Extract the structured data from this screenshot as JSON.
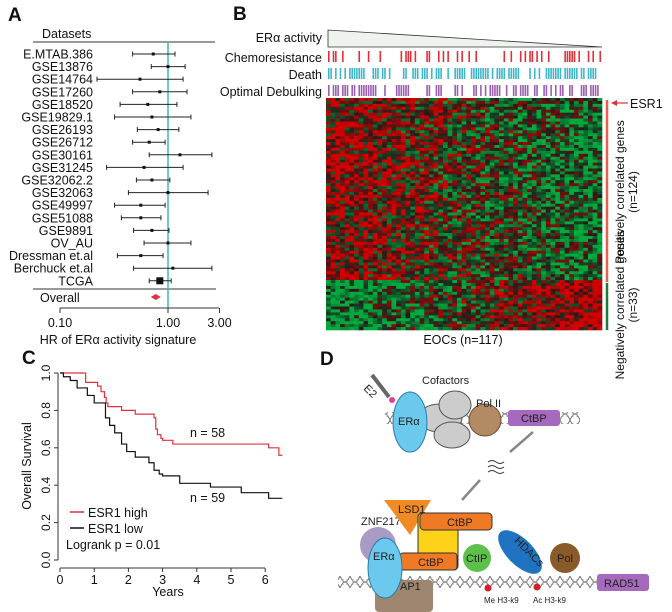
{
  "panels": {
    "a": "A",
    "b": "B",
    "c": "C",
    "d": "D"
  },
  "colors": {
    "red": "#e0303b",
    "blue": "#3fb6cc",
    "purple": "#9b5fb0",
    "heat_red": "#c8202a",
    "heat_green": "#1e9e3a",
    "ref_line": "#3fb6c9"
  },
  "chart_data": [
    {
      "type": "forest",
      "header": "Datasets",
      "xlabel": "HR of ERα activity signature",
      "xscale": "log",
      "xlim": [
        0.1,
        3.0
      ],
      "xticks": [
        "0.10",
        "1.00",
        "3.00"
      ],
      "reference_line": 1.0,
      "rows": [
        {
          "label": "E.MTAB.386",
          "hr": 0.73,
          "lo": 0.47,
          "hi": 1.16
        },
        {
          "label": "GSE13876",
          "hr": 1.0,
          "lo": 0.7,
          "hi": 1.44
        },
        {
          "label": "GSE14764",
          "hr": 0.55,
          "lo": 0.22,
          "hi": 1.38
        },
        {
          "label": "GSE17260",
          "hr": 0.84,
          "lo": 0.47,
          "hi": 1.5
        },
        {
          "label": "GSE18520",
          "hr": 0.65,
          "lo": 0.36,
          "hi": 1.21
        },
        {
          "label": "GSE19829.1",
          "hr": 0.71,
          "lo": 0.32,
          "hi": 1.63
        },
        {
          "label": "GSE26193",
          "hr": 0.81,
          "lo": 0.52,
          "hi": 1.26
        },
        {
          "label": "GSE26712",
          "hr": 0.67,
          "lo": 0.47,
          "hi": 0.94
        },
        {
          "label": "GSE30161",
          "hr": 1.29,
          "lo": 0.67,
          "hi": 2.55
        },
        {
          "label": "GSE31245",
          "hr": 0.6,
          "lo": 0.27,
          "hi": 1.38
        },
        {
          "label": "GSE32062.2",
          "hr": 0.71,
          "lo": 0.51,
          "hi": 1.04
        },
        {
          "label": "GSE32063",
          "hr": 1.0,
          "lo": 0.43,
          "hi": 2.35
        },
        {
          "label": "GSE49997",
          "hr": 0.56,
          "lo": 0.32,
          "hi": 0.94
        },
        {
          "label": "GSE51088",
          "hr": 0.56,
          "lo": 0.37,
          "hi": 0.86
        },
        {
          "label": "GSE9891",
          "hr": 0.71,
          "lo": 0.48,
          "hi": 1.02
        },
        {
          "label": "OV_AU",
          "hr": 1.0,
          "lo": 0.6,
          "hi": 1.63
        },
        {
          "label": "Dressman et.al",
          "hr": 0.56,
          "lo": 0.34,
          "hi": 0.9
        },
        {
          "label": "Berchuck et.al",
          "hr": 1.11,
          "lo": 0.48,
          "hi": 2.55
        },
        {
          "label": "TCGA",
          "hr": 0.84,
          "lo": 0.67,
          "hi": 1.07
        }
      ],
      "overall": {
        "label": "Overall",
        "hr": 0.77
      }
    },
    {
      "type": "heatmap",
      "activity_label": "ERα activity",
      "tracks": [
        "Chemoresistance",
        "Death",
        "Optimal Debulking"
      ],
      "xlabel": "EOCs (n=117)",
      "n_samples": 117,
      "gene_marker": "ESR1",
      "groups": [
        {
          "label": "Positively correlated genes",
          "count": "(n=124)",
          "n": 124
        },
        {
          "label": "Negatively correlated genes",
          "count": "(n=33)",
          "n": 33
        }
      ]
    },
    {
      "type": "line",
      "subtype": "kaplan-meier",
      "xlabel": "Years",
      "ylabel": "Overall Survival",
      "xlim": [
        0,
        6.5
      ],
      "ylim": [
        0,
        1
      ],
      "xticks": [
        "0",
        "1",
        "2",
        "3",
        "4",
        "5",
        "6"
      ],
      "yticks": [
        "0.0",
        "0.2",
        "0.4",
        "0.6",
        "0.8",
        "1.0"
      ],
      "series": [
        {
          "name": "ESR1 high",
          "n_label": "n = 58",
          "points": [
            [
              0,
              1
            ],
            [
              0.75,
              0.95
            ],
            [
              1.1,
              0.93
            ],
            [
              1.2,
              0.9
            ],
            [
              1.3,
              0.87
            ],
            [
              1.35,
              0.84
            ],
            [
              1.4,
              0.82
            ],
            [
              1.8,
              0.8
            ],
            [
              2.2,
              0.78
            ],
            [
              2.75,
              0.76
            ],
            [
              2.8,
              0.7
            ],
            [
              2.85,
              0.67
            ],
            [
              2.95,
              0.65
            ],
            [
              3.0,
              0.64
            ],
            [
              3.3,
              0.62
            ],
            [
              6.1,
              0.6
            ],
            [
              6.4,
              0.56
            ],
            [
              6.5,
              0.56
            ]
          ]
        },
        {
          "name": "ESR1 low",
          "n_label": "n = 59",
          "points": [
            [
              0,
              1
            ],
            [
              0.1,
              0.98
            ],
            [
              0.3,
              0.96
            ],
            [
              0.5,
              0.92
            ],
            [
              0.8,
              0.88
            ],
            [
              1.0,
              0.84
            ],
            [
              1.33,
              0.76
            ],
            [
              1.45,
              0.72
            ],
            [
              1.6,
              0.68
            ],
            [
              1.8,
              0.62
            ],
            [
              1.95,
              0.58
            ],
            [
              2.2,
              0.55
            ],
            [
              2.6,
              0.52
            ],
            [
              2.75,
              0.48
            ],
            [
              2.9,
              0.46
            ],
            [
              3.0,
              0.45
            ],
            [
              3.5,
              0.41
            ],
            [
              4.4,
              0.39
            ],
            [
              5.3,
              0.36
            ],
            [
              6.1,
              0.33
            ],
            [
              6.5,
              0.33
            ]
          ]
        }
      ],
      "annotation": "Logrank p = 0.01"
    }
  ],
  "diagram": {
    "e2": "E2",
    "cofactors": "Cofactors",
    "era": "ERα",
    "pol2": "Pol II",
    "ctbp": "CtBP",
    "lsd1": "LSD1",
    "znf217": "ZNF217",
    "ap1": "AP1",
    "ctip": "CtIP",
    "hdacs": "HDACs",
    "pol": "Pol",
    "rad51": "RAD51",
    "me": "Me H3-k9",
    "ac": "Ac H3-k9"
  }
}
